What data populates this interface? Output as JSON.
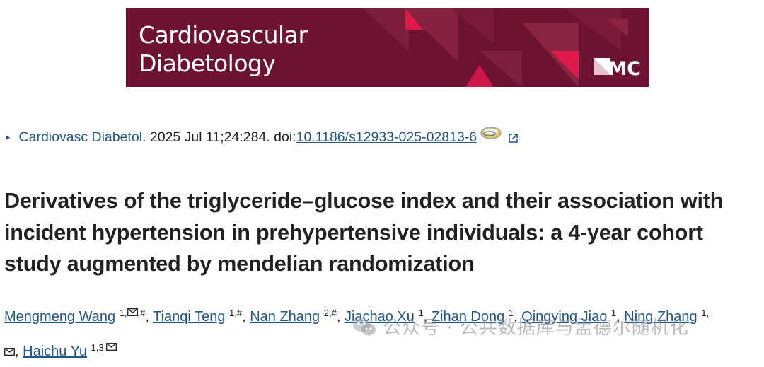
{
  "banner": {
    "line1": "Cardiovascular",
    "line2": "Diabetology",
    "publisher": "BMC",
    "colors": {
      "background": "#6d1331",
      "accent": "#e0194b"
    }
  },
  "citation": {
    "journal": "Cardiovasc Diabetol",
    "details": ". 2025 Jul 11;24:284. doi: ",
    "doi": "10.1186/s12933-025-02813-6"
  },
  "article": {
    "title": "Derivatives of the triglyceride–glucose index and their association with incident hypertension in prehypertensive individuals: a 4-year cohort study augmented by mendelian randomization"
  },
  "authors": [
    {
      "name": "Mengmeng Wang",
      "sup_pre": "1,",
      "mail": true,
      "sup_post": ",#"
    },
    {
      "name": "Tianqi Teng",
      "sup_pre": "1,#"
    },
    {
      "name": "Nan Zhang",
      "sup_pre": "2,#"
    },
    {
      "name": "Jiachao Xu",
      "sup_pre": "1"
    },
    {
      "name": "Zihan Dong",
      "sup_pre": "1"
    },
    {
      "name": "Qingying Jiao",
      "sup_pre": "1"
    },
    {
      "name": "Ning Zhang",
      "sup_pre": "1,"
    },
    {
      "name": "Haichu Yu",
      "sup_pre": "1,3,",
      "mail": true
    }
  ],
  "watermark": {
    "text": "公众号 · 公共数据库与孟德尔随机化"
  }
}
